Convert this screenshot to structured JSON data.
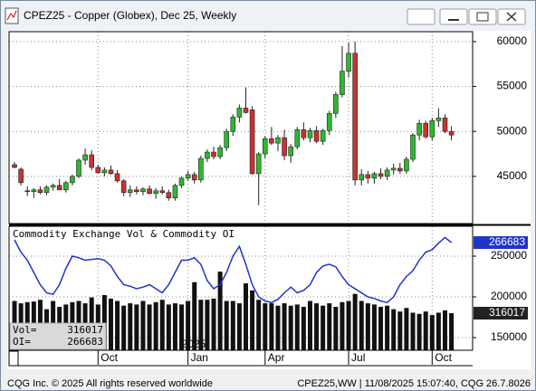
{
  "window": {
    "title": "CPEZ25 - Copper (Globex), Dec 25, Weekly",
    "footer_left": "CQG Inc. © 2025 All rights reserved worldwide",
    "footer_right": "CPEZ25,WW | 11/08/2025 15:07:40, CQG 26.7.8026"
  },
  "chart_data": {
    "type": "candlestick",
    "xlim": [
      -0.85,
      71.3
    ],
    "xticks": [
      {
        "value": 13,
        "label": "Oct"
      },
      {
        "value": 27,
        "label": "Jan"
      },
      {
        "value": 39,
        "label": "Apr"
      },
      {
        "value": 52,
        "label": "Jul"
      },
      {
        "value": 65,
        "label": "Oct"
      }
    ],
    "year_ticks": [
      {
        "value": 26,
        "label": "2025"
      }
    ],
    "grid": true,
    "up_color": "#2eb82e",
    "down_color": "#c83232",
    "price": {
      "ylim": [
        39750,
        61100
      ],
      "yticks": [
        45000,
        50000,
        55000,
        60000
      ],
      "open": [
        46300,
        45800,
        43400,
        43300,
        43500,
        43200,
        43800,
        44000,
        43500,
        44300,
        45000,
        46800,
        47400,
        46000,
        45400,
        45700,
        45300,
        44500,
        43200,
        43500,
        43300,
        43600,
        43100,
        43400,
        43200,
        42600,
        44000,
        44800,
        45200,
        44600,
        47000,
        47700,
        47200,
        48200,
        50000,
        51600,
        52600,
        52400,
        45300,
        47500,
        49200,
        48700,
        49300,
        47300,
        48300,
        50200,
        49300,
        50100,
        48900,
        50100,
        52000,
        54100,
        56700,
        58700,
        44600,
        45200,
        44800,
        45300,
        45000,
        45700,
        45900,
        45600,
        46900,
        49600,
        50900,
        49400,
        51200,
        51500,
        50000
      ],
      "high": [
        46600,
        46000,
        43900,
        43700,
        43900,
        44000,
        44200,
        44700,
        44500,
        45200,
        47000,
        48100,
        47900,
        46300,
        46000,
        46200,
        45700,
        44700,
        44000,
        43900,
        43800,
        44000,
        43700,
        43900,
        43500,
        44200,
        45000,
        45600,
        45500,
        47300,
        48000,
        48300,
        48500,
        50300,
        51900,
        53000,
        54900,
        52800,
        47700,
        49500,
        50500,
        49600,
        50200,
        48600,
        50500,
        51000,
        50400,
        50600,
        50300,
        52300,
        54400,
        59500,
        59900,
        60000,
        45800,
        45600,
        45500,
        45900,
        46000,
        46400,
        46500,
        47200,
        49800,
        51300,
        51200,
        51500,
        52600,
        51900,
        50600
      ],
      "low": [
        45900,
        44000,
        42800,
        42600,
        43000,
        42900,
        43400,
        43600,
        43200,
        44000,
        44800,
        46300,
        45700,
        45300,
        45000,
        45200,
        44300,
        42800,
        42700,
        43000,
        42900,
        43000,
        42500,
        43000,
        42300,
        42300,
        43700,
        44500,
        44200,
        44300,
        46600,
        46900,
        46900,
        47800,
        49500,
        51000,
        52000,
        45200,
        41800,
        47000,
        48500,
        47800,
        46800,
        46500,
        48000,
        49000,
        48800,
        48700,
        48500,
        49600,
        51500,
        53800,
        56000,
        44000,
        44000,
        44200,
        44200,
        44700,
        44600,
        45200,
        45300,
        45300,
        46600,
        49000,
        49200,
        49000,
        50500,
        49800,
        49000
      ],
      "close": [
        46000,
        44300,
        43300,
        43500,
        43200,
        43800,
        44000,
        43500,
        44300,
        45000,
        46800,
        47400,
        46000,
        45400,
        45700,
        45300,
        44500,
        43200,
        43500,
        43300,
        43600,
        43100,
        43400,
        43200,
        42600,
        44000,
        44800,
        45200,
        44600,
        47000,
        47700,
        47200,
        48200,
        50000,
        51600,
        52600,
        52100,
        45300,
        47500,
        49200,
        48700,
        49300,
        47300,
        48300,
        50200,
        49300,
        50100,
        48900,
        50100,
        52000,
        54100,
        56700,
        58700,
        44600,
        45200,
        44800,
        45300,
        45000,
        45700,
        45900,
        45600,
        46900,
        49600,
        50900,
        49400,
        51200,
        51500,
        50000,
        49600
      ]
    },
    "indicator": {
      "title": "Commodity Exchange Vol & Commodity OI",
      "ylim": [
        134400,
        286700
      ],
      "yticks": [
        150000,
        200000,
        250000
      ],
      "y2lim": [
        0,
        1056000
      ],
      "volume": {
        "name": "Vol=",
        "color": "#111111",
        "axis": "y2",
        "values": [
          420000,
          400000,
          410000,
          415000,
          430000,
          350000,
          420000,
          370000,
          390000,
          410000,
          420000,
          400000,
          450000,
          390000,
          470000,
          440000,
          420000,
          380000,
          400000,
          390000,
          420000,
          390000,
          410000,
          430000,
          390000,
          400000,
          390000,
          420000,
          580000,
          430000,
          430000,
          440000,
          670000,
          420000,
          420000,
          400000,
          570000,
          510000,
          430000,
          400000,
          400000,
          380000,
          400000,
          380000,
          390000,
          370000,
          420000,
          400000,
          380000,
          400000,
          370000,
          410000,
          420000,
          480000,
          420000,
          400000,
          390000,
          370000,
          380000,
          350000,
          330000,
          360000,
          320000,
          310000,
          330000,
          300000,
          320000,
          340000,
          316017
        ]
      },
      "oi": {
        "name": "OI=",
        "color": "#1f35c8",
        "values": [
          270000,
          255000,
          245000,
          230000,
          215000,
          205000,
          203000,
          215000,
          235000,
          250000,
          248000,
          245000,
          246000,
          247000,
          245000,
          238000,
          225000,
          215000,
          213000,
          210000,
          212000,
          215000,
          210000,
          205000,
          215000,
          230000,
          245000,
          245000,
          248000,
          240000,
          220000,
          210000,
          215000,
          230000,
          250000,
          262000,
          240000,
          215000,
          200000,
          195000,
          193000,
          197000,
          205000,
          212000,
          205000,
          208000,
          215000,
          230000,
          238000,
          240000,
          237000,
          225000,
          215000,
          210000,
          205000,
          200000,
          198000,
          195000,
          193000,
          200000,
          215000,
          225000,
          232000,
          245000,
          255000,
          258000,
          266000,
          273000,
          266683
        ]
      }
    }
  }
}
